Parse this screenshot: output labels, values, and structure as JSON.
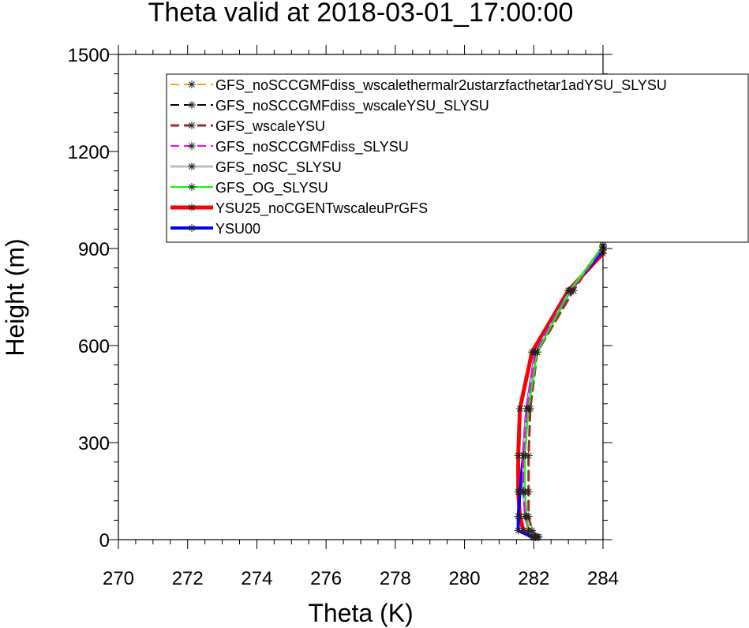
{
  "chart_data": {
    "type": "line",
    "title": "Theta valid at 2018-03-01_17:00:00",
    "xlabel": "Theta (K)",
    "ylabel": "Height (m)",
    "xlim": [
      270,
      284
    ],
    "ylim": [
      0,
      1500
    ],
    "xticks": [
      "270",
      "272",
      "274",
      "276",
      "278",
      "280",
      "282",
      "284"
    ],
    "xtick_values": [
      270,
      272,
      274,
      276,
      278,
      280,
      282,
      284
    ],
    "yticks": [
      "0",
      "300",
      "600",
      "900",
      "1200",
      "1500"
    ],
    "ytick_values": [
      0,
      300,
      600,
      900,
      1200,
      1500
    ],
    "grid": false,
    "legend_position": "top-right",
    "series": [
      {
        "name": "GFS_noSCCGMFdiss_wscalethermalr2ustarzfacthetar1adYSU_SLYSU",
        "color": "#ffa500",
        "line_style": "dashed",
        "line_width": 2,
        "x": [
          282.1,
          281.85,
          281.75,
          281.7,
          281.7,
          281.8,
          282.05,
          283.05,
          284.0
        ],
        "y": [
          8,
          28,
          72,
          148,
          260,
          405,
          580,
          770,
          905
        ]
      },
      {
        "name": "GFS_noSCCGMFdiss_wscaleYSU_SLYSU",
        "color": "#000000",
        "line_style": "dashed",
        "line_width": 2,
        "x": [
          282.1,
          281.85,
          281.75,
          281.7,
          281.7,
          281.8,
          282.05,
          283.05,
          284.0
        ],
        "y": [
          8,
          28,
          72,
          148,
          260,
          405,
          580,
          770,
          905
        ]
      },
      {
        "name": "GFS_wscaleYSU",
        "color": "#a52a2a",
        "line_style": "dashed",
        "line_width": 3,
        "x": [
          282.15,
          281.95,
          281.85,
          281.85,
          281.85,
          281.9,
          282.1,
          283.15,
          284.0
        ],
        "y": [
          8,
          28,
          72,
          148,
          260,
          405,
          580,
          770,
          910
        ]
      },
      {
        "name": "GFS_noSCCGMFdiss_SLYSU",
        "color": "#ff00ff",
        "line_style": "dashed",
        "line_width": 2,
        "x": [
          282.1,
          281.85,
          281.75,
          281.7,
          281.7,
          281.8,
          282.05,
          283.05,
          284.0
        ],
        "y": [
          8,
          28,
          72,
          148,
          260,
          405,
          580,
          770,
          905
        ]
      },
      {
        "name": "GFS_noSC_SLYSU",
        "color": "#bebebe",
        "line_style": "solid",
        "line_width": 3,
        "x": [
          282.05,
          281.85,
          281.75,
          281.7,
          281.7,
          281.8,
          282.05,
          283.05,
          284.0
        ],
        "y": [
          8,
          28,
          72,
          148,
          260,
          405,
          580,
          770,
          905
        ]
      },
      {
        "name": "GFS_OG_SLYSU",
        "color": "#00ff00",
        "line_style": "solid",
        "line_width": 2,
        "x": [
          282.05,
          281.85,
          281.8,
          281.75,
          281.75,
          281.85,
          282.1,
          283.05,
          284.0
        ],
        "y": [
          8,
          28,
          72,
          148,
          260,
          405,
          580,
          770,
          910
        ]
      },
      {
        "name": "YSU25_noCGENTwscaleuPrGFS",
        "color": "#ff0000",
        "line_style": "solid",
        "line_width": 5,
        "x": [
          282.0,
          281.7,
          281.6,
          281.55,
          281.55,
          281.6,
          281.95,
          283.0,
          284.0
        ],
        "y": [
          8,
          28,
          72,
          148,
          260,
          405,
          580,
          770,
          885
        ]
      },
      {
        "name": "YSU00",
        "color": "#0000ff",
        "line_style": "solid",
        "line_width": 4,
        "x": [
          281.95,
          281.55,
          281.55,
          281.6,
          281.7,
          281.8,
          282.05,
          283.05,
          284.0
        ],
        "y": [
          8,
          28,
          72,
          148,
          260,
          405,
          580,
          770,
          895
        ]
      }
    ]
  }
}
